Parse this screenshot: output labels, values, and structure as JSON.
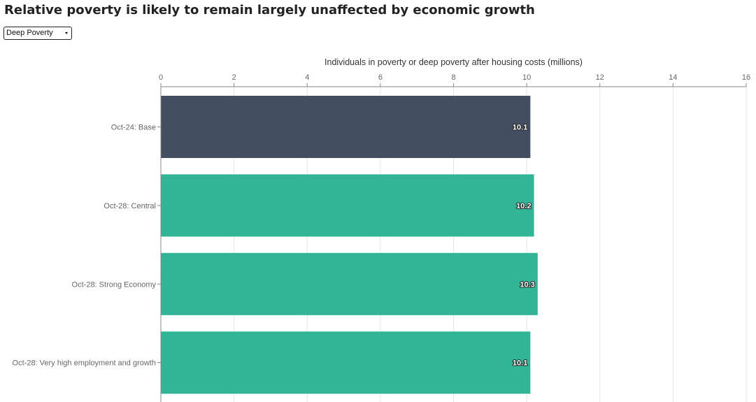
{
  "page": {
    "title": "Relative poverty is likely to remain largely unaffected by economic growth"
  },
  "selector": {
    "selected": "Deep Poverty"
  },
  "chart_data": {
    "type": "bar",
    "orientation": "horizontal",
    "xlabel": "Individuals in poverty or deep poverty after housing costs (millions)",
    "xlim": [
      0,
      16
    ],
    "x_ticks": [
      0,
      2,
      4,
      6,
      8,
      10,
      12,
      14,
      16
    ],
    "grid": true,
    "x_axis_position": "top",
    "categories": [
      "Oct-24: Base",
      "Oct-28: Central",
      "Oct-28: Strong Economy",
      "Oct-28: Very high employment and growth"
    ],
    "values": [
      10.1,
      10.2,
      10.3,
      10.1
    ],
    "data_labels": [
      "10.1",
      "10.2",
      "10.3",
      "10.1"
    ],
    "colors": [
      "#434f61",
      "#32b597",
      "#32b597",
      "#32b597"
    ]
  }
}
